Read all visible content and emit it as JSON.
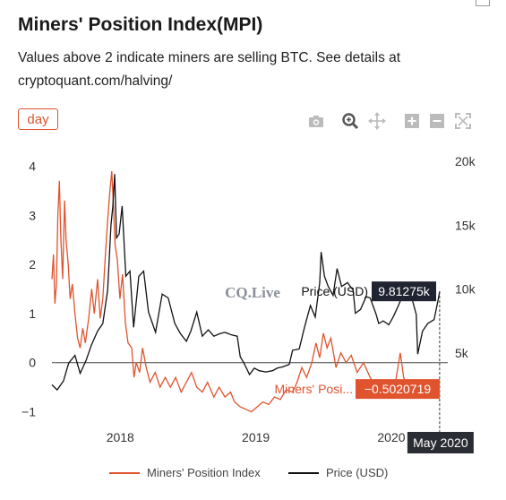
{
  "header": {
    "title": "Miners' Position Index(MPI)",
    "description": "Values above 2 indicate miners are selling BTC. See details at cryptoquant.com/halving/"
  },
  "controls": {
    "period_label": "day",
    "toolbar_icons": [
      "camera-icon",
      "zoom-icon",
      "pan-icon",
      "zoom-in-icon",
      "zoom-out-icon",
      "autoscale-icon"
    ]
  },
  "colors": {
    "mpi": "#e0532f",
    "price": "#111111",
    "accent": "#e0532f"
  },
  "watermark": "CQ.Live",
  "chart_data": {
    "type": "line",
    "title": "Miners' Position Index(MPI)",
    "x_tick_labels": [
      "2018",
      "2019",
      "2020"
    ],
    "y_left_ticks": [
      "4",
      "3",
      "2",
      "1",
      "0",
      "−1"
    ],
    "y_right_ticks": [
      "20k",
      "15k",
      "10k",
      "5k"
    ],
    "ylim_left": [
      -1.1,
      4.1
    ],
    "ylim_right": [
      0,
      20000
    ],
    "xlim": [
      "2017-07-01",
      "2020-06-01"
    ],
    "grid": false,
    "legend_position": "bottom",
    "series": [
      {
        "name": "Miners' Position Index",
        "axis": "left",
        "points": [
          [
            "2017-07-01",
            1.7
          ],
          [
            "2017-07-05",
            2.2
          ],
          [
            "2017-07-09",
            1.2
          ],
          [
            "2017-07-13",
            1.6
          ],
          [
            "2017-07-17",
            3.0
          ],
          [
            "2017-07-21",
            3.7
          ],
          [
            "2017-07-25",
            2.5
          ],
          [
            "2017-07-30",
            1.7
          ],
          [
            "2017-08-04",
            3.3
          ],
          [
            "2017-08-08",
            2.5
          ],
          [
            "2017-08-14",
            2.0
          ],
          [
            "2017-08-19",
            1.3
          ],
          [
            "2017-08-25",
            1.6
          ],
          [
            "2017-09-01",
            1.0
          ],
          [
            "2017-09-08",
            0.5
          ],
          [
            "2017-09-15",
            0.3
          ],
          [
            "2017-09-22",
            0.7
          ],
          [
            "2017-09-29",
            0.4
          ],
          [
            "2017-10-08",
            0.9
          ],
          [
            "2017-10-16",
            1.5
          ],
          [
            "2017-10-23",
            1.0
          ],
          [
            "2017-11-01",
            1.7
          ],
          [
            "2017-11-08",
            0.9
          ],
          [
            "2017-11-15",
            1.3
          ],
          [
            "2017-11-22",
            2.2
          ],
          [
            "2017-11-28",
            2.9
          ],
          [
            "2017-12-04",
            3.5
          ],
          [
            "2017-12-09",
            3.9
          ],
          [
            "2017-12-13",
            3.3
          ],
          [
            "2017-12-18",
            2.4
          ],
          [
            "2017-12-24",
            2.1
          ],
          [
            "2017-12-31",
            1.3
          ],
          [
            "2018-01-07",
            1.8
          ],
          [
            "2018-01-15",
            0.8
          ],
          [
            "2018-01-22",
            0.4
          ],
          [
            "2018-02-01",
            0.3
          ],
          [
            "2018-02-07",
            -0.3
          ],
          [
            "2018-02-13",
            0.0
          ],
          [
            "2018-02-22",
            -0.2
          ],
          [
            "2018-03-02",
            0.3
          ],
          [
            "2018-03-12",
            -0.1
          ],
          [
            "2018-03-22",
            -0.4
          ],
          [
            "2018-04-05",
            -0.2
          ],
          [
            "2018-04-18",
            -0.5
          ],
          [
            "2018-05-02",
            -0.3
          ],
          [
            "2018-05-16",
            -0.5
          ],
          [
            "2018-05-30",
            -0.3
          ],
          [
            "2018-06-14",
            -0.6
          ],
          [
            "2018-06-28",
            -0.4
          ],
          [
            "2018-07-12",
            -0.2
          ],
          [
            "2018-07-26",
            -0.5
          ],
          [
            "2018-08-10",
            -0.6
          ],
          [
            "2018-08-24",
            -0.4
          ],
          [
            "2018-09-10",
            -0.7
          ],
          [
            "2018-09-24",
            -0.5
          ],
          [
            "2018-10-10",
            -0.7
          ],
          [
            "2018-10-25",
            -0.6
          ],
          [
            "2018-11-05",
            -0.8
          ],
          [
            "2018-11-20",
            -0.9
          ],
          [
            "2018-12-05",
            -0.95
          ],
          [
            "2018-12-20",
            -1.0
          ],
          [
            "2019-01-05",
            -0.9
          ],
          [
            "2019-01-20",
            -0.8
          ],
          [
            "2019-02-05",
            -0.85
          ],
          [
            "2019-02-20",
            -0.7
          ],
          [
            "2019-03-08",
            -0.75
          ],
          [
            "2019-03-24",
            -0.55
          ],
          [
            "2019-04-10",
            -0.6
          ],
          [
            "2019-04-22",
            -0.4
          ],
          [
            "2019-05-05",
            -0.1
          ],
          [
            "2019-05-18",
            -0.3
          ],
          [
            "2019-06-01",
            0.0
          ],
          [
            "2019-06-12",
            0.4
          ],
          [
            "2019-06-22",
            0.1
          ],
          [
            "2019-07-02",
            0.6
          ],
          [
            "2019-07-12",
            0.3
          ],
          [
            "2019-07-22",
            0.5
          ],
          [
            "2019-08-05",
            -0.1
          ],
          [
            "2019-08-18",
            0.2
          ],
          [
            "2019-09-01",
            0.0
          ],
          [
            "2019-09-15",
            0.15
          ],
          [
            "2019-10-01",
            -0.2
          ],
          [
            "2019-10-18",
            0.0
          ],
          [
            "2019-11-05",
            -0.3
          ],
          [
            "2019-11-22",
            -0.5
          ],
          [
            "2019-12-10",
            -0.4
          ],
          [
            "2019-12-28",
            -0.6
          ],
          [
            "2020-01-10",
            -0.5
          ],
          [
            "2020-01-25",
            0.2
          ],
          [
            "2020-02-03",
            -0.3
          ],
          [
            "2020-02-15",
            -0.5
          ],
          [
            "2020-03-01",
            -0.6
          ],
          [
            "2020-03-15",
            -0.4
          ],
          [
            "2020-04-01",
            -0.5
          ],
          [
            "2020-04-20",
            -0.6
          ],
          [
            "2020-05-10",
            -0.5
          ]
        ]
      },
      {
        "name": "Price (USD)",
        "axis": "right",
        "points": [
          [
            "2017-07-01",
            2500
          ],
          [
            "2017-07-15",
            2100
          ],
          [
            "2017-08-01",
            2800
          ],
          [
            "2017-08-15",
            4200
          ],
          [
            "2017-09-01",
            4800
          ],
          [
            "2017-09-15",
            3400
          ],
          [
            "2017-10-01",
            4400
          ],
          [
            "2017-10-15",
            5600
          ],
          [
            "2017-11-01",
            6700
          ],
          [
            "2017-11-15",
            7300
          ],
          [
            "2017-11-28",
            9900
          ],
          [
            "2017-12-07",
            15000
          ],
          [
            "2017-12-12",
            16500
          ],
          [
            "2017-12-17",
            19000
          ],
          [
            "2017-12-22",
            14000
          ],
          [
            "2017-12-29",
            14300
          ],
          [
            "2018-01-06",
            16500
          ],
          [
            "2018-01-16",
            11000
          ],
          [
            "2018-01-27",
            11400
          ],
          [
            "2018-02-06",
            7000
          ],
          [
            "2018-02-20",
            11000
          ],
          [
            "2018-03-05",
            11400
          ],
          [
            "2018-03-18",
            8200
          ],
          [
            "2018-04-06",
            6600
          ],
          [
            "2018-04-24",
            9600
          ],
          [
            "2018-05-10",
            9300
          ],
          [
            "2018-05-28",
            7300
          ],
          [
            "2018-06-12",
            6500
          ],
          [
            "2018-06-28",
            5900
          ],
          [
            "2018-07-10",
            6700
          ],
          [
            "2018-07-26",
            8200
          ],
          [
            "2018-08-10",
            6300
          ],
          [
            "2018-08-26",
            6800
          ],
          [
            "2018-09-10",
            6300
          ],
          [
            "2018-09-26",
            6500
          ],
          [
            "2018-10-10",
            6600
          ],
          [
            "2018-10-28",
            6400
          ],
          [
            "2018-11-12",
            6300
          ],
          [
            "2018-11-20",
            4700
          ],
          [
            "2018-11-30",
            4200
          ],
          [
            "2018-12-15",
            3300
          ],
          [
            "2018-12-28",
            3800
          ],
          [
            "2019-01-10",
            3600
          ],
          [
            "2019-01-28",
            3500
          ],
          [
            "2019-02-15",
            3600
          ],
          [
            "2019-02-28",
            3800
          ],
          [
            "2019-03-15",
            3900
          ],
          [
            "2019-04-01",
            4100
          ],
          [
            "2019-04-10",
            5200
          ],
          [
            "2019-04-28",
            5300
          ],
          [
            "2019-05-12",
            7000
          ],
          [
            "2019-05-28",
            8700
          ],
          [
            "2019-06-10",
            7800
          ],
          [
            "2019-06-22",
            10500
          ],
          [
            "2019-06-26",
            12900
          ],
          [
            "2019-07-05",
            11000
          ],
          [
            "2019-07-15",
            10200
          ],
          [
            "2019-07-28",
            9500
          ],
          [
            "2019-08-08",
            11600
          ],
          [
            "2019-08-20",
            10200
          ],
          [
            "2019-09-05",
            10500
          ],
          [
            "2019-09-20",
            9900
          ],
          [
            "2019-09-26",
            8100
          ],
          [
            "2019-10-10",
            8400
          ],
          [
            "2019-10-25",
            9400
          ],
          [
            "2019-11-05",
            9300
          ],
          [
            "2019-11-20",
            8100
          ],
          [
            "2019-11-28",
            7300
          ],
          [
            "2019-12-10",
            7500
          ],
          [
            "2019-12-25",
            7200
          ],
          [
            "2020-01-06",
            7800
          ],
          [
            "2020-01-20",
            8700
          ],
          [
            "2020-02-10",
            10200
          ],
          [
            "2020-02-25",
            9300
          ],
          [
            "2020-03-08",
            8000
          ],
          [
            "2020-03-12",
            4900
          ],
          [
            "2020-03-25",
            6700
          ],
          [
            "2020-04-08",
            7300
          ],
          [
            "2020-04-25",
            7600
          ],
          [
            "2020-05-05",
            9000
          ],
          [
            "2020-05-10",
            9812.75
          ]
        ]
      }
    ],
    "hover": {
      "date_label": "May 2020",
      "price_label": "Price (USD)",
      "price_value": "9.81275k",
      "mpi_label": "Miners' Posi...",
      "mpi_value": "−0.5020719"
    }
  }
}
